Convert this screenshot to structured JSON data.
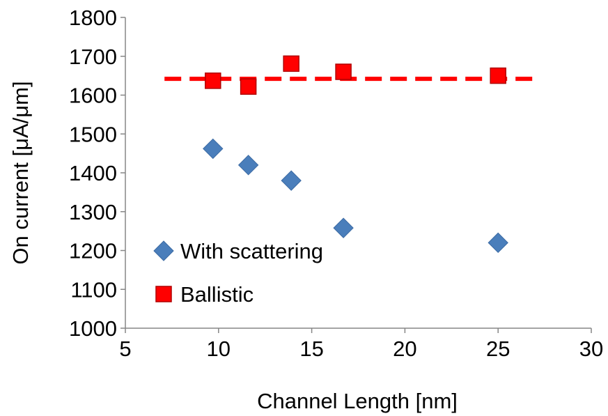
{
  "chart_data": {
    "type": "scatter",
    "xlabel": "Channel Length [nm]",
    "ylabel": "On current [μA/μm]",
    "xlim": [
      5,
      30
    ],
    "ylim": [
      1000,
      1800
    ],
    "xticks": [
      5,
      10,
      15,
      20,
      25,
      30
    ],
    "yticks": [
      1000,
      1100,
      1200,
      1300,
      1400,
      1500,
      1600,
      1700,
      1800
    ],
    "grid": false,
    "legend_position": "lower-left",
    "series": [
      {
        "name": "With scattering",
        "marker": "diamond",
        "color": "#4a7ebb",
        "points": [
          {
            "x": 9.7,
            "y": 1462
          },
          {
            "x": 11.6,
            "y": 1420
          },
          {
            "x": 13.9,
            "y": 1380
          },
          {
            "x": 16.7,
            "y": 1258
          },
          {
            "x": 25.0,
            "y": 1220
          }
        ]
      },
      {
        "name": "Ballistic",
        "marker": "square",
        "color": "#ff0000",
        "points": [
          {
            "x": 9.7,
            "y": 1637
          },
          {
            "x": 11.6,
            "y": 1622
          },
          {
            "x": 13.9,
            "y": 1681
          },
          {
            "x": 16.7,
            "y": 1660
          },
          {
            "x": 25.0,
            "y": 1650
          }
        ]
      }
    ],
    "reference_line": {
      "style": "dashed",
      "color": "#ff0000",
      "x": [
        7.1,
        27.2
      ],
      "y": 1642
    }
  }
}
